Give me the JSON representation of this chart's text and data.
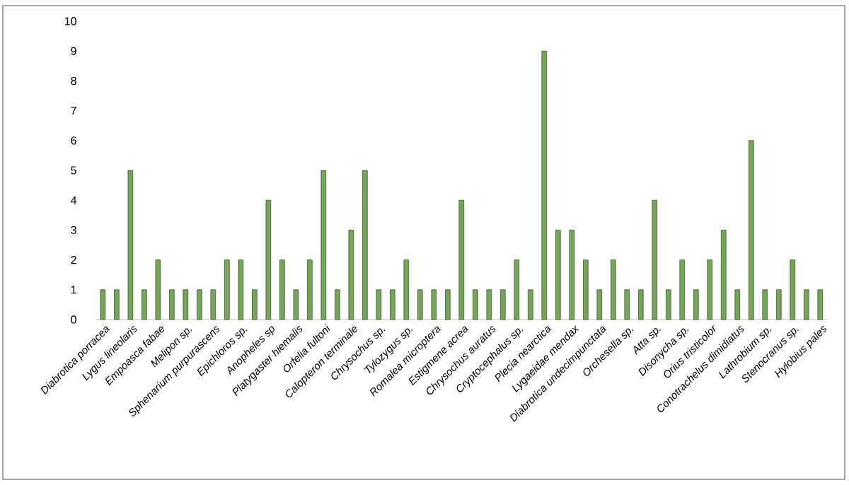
{
  "chart_data": {
    "type": "bar",
    "categories": [
      "Diabrotica porracea",
      null,
      "Lygus lineolaris",
      null,
      "Empoasca fabae",
      null,
      "Melipon sp.",
      null,
      "Sphenarium purpurascens",
      null,
      "Epichloros sp.",
      null,
      "Anopheles sp",
      null,
      "Platygaster hiemalis",
      null,
      "Orfelia fultoni",
      null,
      "Calopteron terminale",
      null,
      "Chrysochus sp.",
      null,
      "Tylozygus sp.",
      null,
      "Romalea microptera",
      null,
      "Estigmene acrea",
      null,
      "Chrysochus auratus",
      null,
      "Cryptocephalus sp.",
      null,
      "Plecia nearctica",
      null,
      "Lygaeidae mendax",
      null,
      "Diabrotica undecimpunctata",
      null,
      "Orchesella sp.",
      null,
      "Atta sp.",
      null,
      "Disonycha sp.",
      null,
      "Orius tristicolor",
      null,
      "Conotrachelus dimidiatus",
      null,
      "Lathrobium sp.",
      null,
      "Stenocranus sp.",
      null,
      "Hylobius pales"
    ],
    "values": [
      1,
      1,
      5,
      1,
      2,
      1,
      1,
      1,
      1,
      2,
      2,
      1,
      4,
      2,
      1,
      2,
      5,
      1,
      3,
      5,
      1,
      1,
      2,
      1,
      1,
      1,
      4,
      1,
      1,
      1,
      2,
      1,
      9,
      3,
      3,
      2,
      1,
      2,
      1,
      1,
      4,
      1,
      2,
      1,
      2,
      3,
      1,
      6,
      1,
      1,
      2,
      1,
      1
    ],
    "color": "#77a55a",
    "ylim": [
      0,
      10
    ],
    "yticks": [
      0,
      1,
      2,
      3,
      4,
      5,
      6,
      7,
      8,
      9,
      10
    ]
  }
}
